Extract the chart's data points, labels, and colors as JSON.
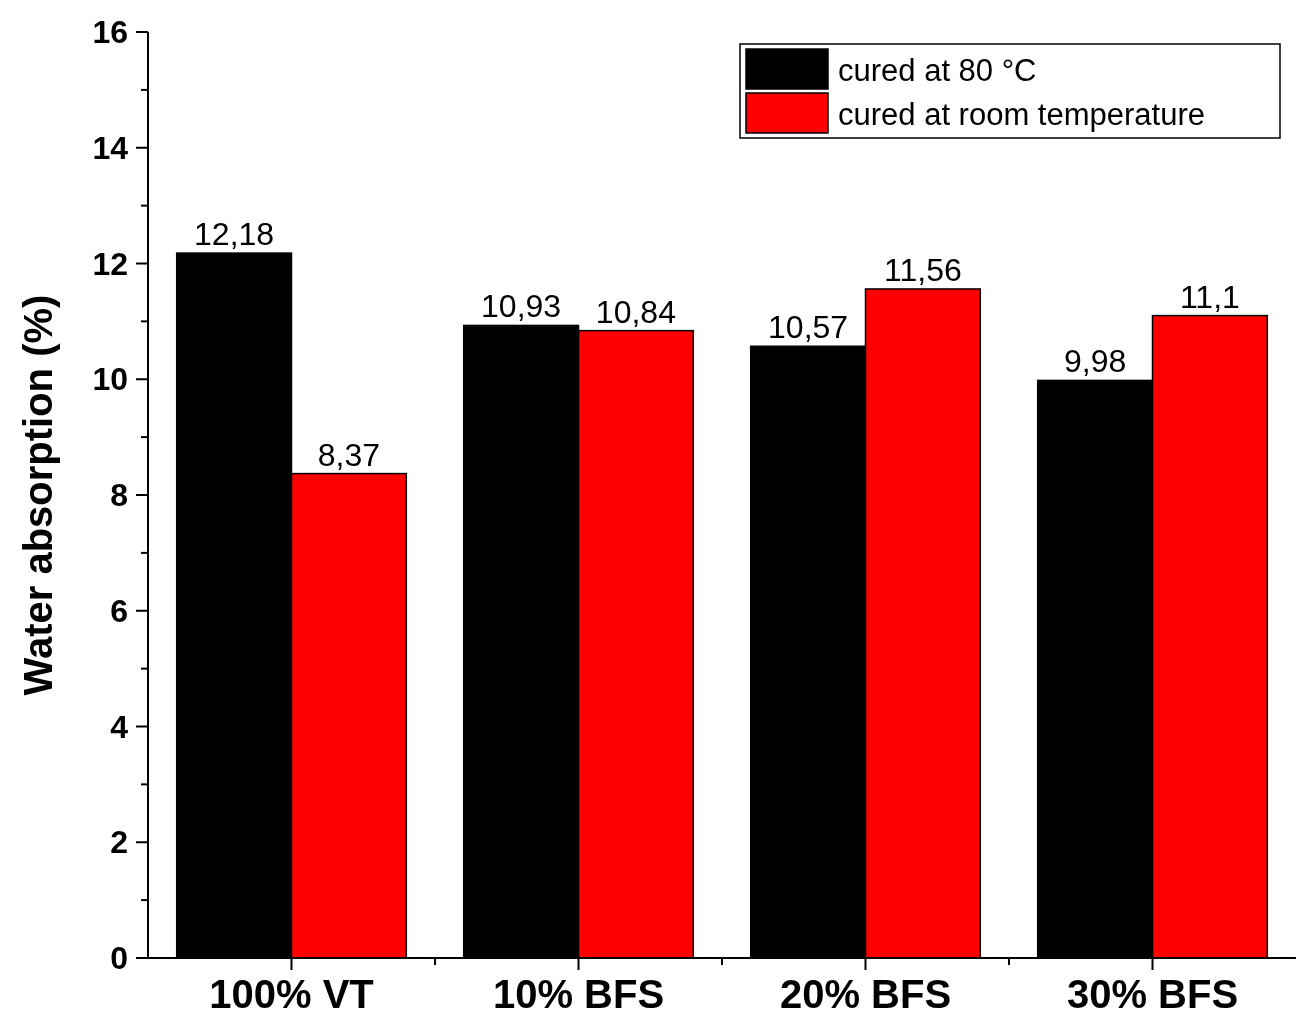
{
  "chart_data": {
    "type": "bar",
    "ylabel": "Water absorption  (%)",
    "categories": [
      "100% VT",
      "10% BFS",
      "20% BFS",
      "30% BFS"
    ],
    "series": [
      {
        "name": "cured at 80 °C",
        "color": "#000000",
        "values": [
          12.18,
          10.93,
          10.57,
          9.98
        ],
        "value_labels": [
          "12,18",
          "10,93",
          "10,57",
          "9,98"
        ]
      },
      {
        "name": "cured at room temperature",
        "color": "#ff0000",
        "values": [
          8.37,
          10.84,
          11.56,
          11.1
        ],
        "value_labels": [
          "8,37",
          "10,84",
          "11,56",
          "11,1"
        ]
      }
    ],
    "ylim": [
      0,
      16
    ],
    "yticks": [
      0,
      {
        "value": 1,
        "label": null
      },
      2,
      {
        "value": 3,
        "label": null
      },
      4,
      {
        "value": 5,
        "label": null
      },
      6,
      {
        "value": 7,
        "label": null
      },
      8,
      {
        "value": 9,
        "label": null
      },
      10,
      {
        "value": 11,
        "label": null
      },
      12,
      {
        "value": 13,
        "label": null
      },
      14,
      {
        "value": 15,
        "label": null
      },
      16
    ],
    "legend": "top right",
    "grid": false
  }
}
